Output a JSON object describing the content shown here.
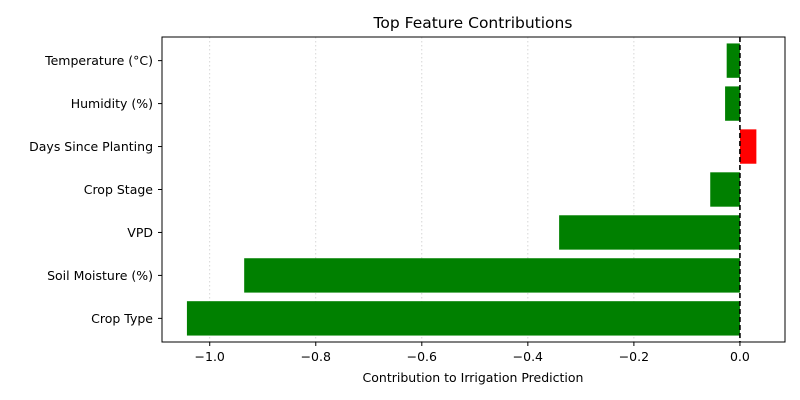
{
  "chart_data": {
    "type": "bar",
    "orientation": "horizontal",
    "title": "Top Feature Contributions",
    "xlabel": "Contribution to Irrigation Prediction",
    "ylabel": "",
    "categories": [
      "Crop Type",
      "Soil Moisture (%)",
      "VPD",
      "Crop Stage",
      "Days Since Planting",
      "Humidity (%)",
      "Temperature (°C)"
    ],
    "values": [
      -1.043,
      -0.935,
      -0.341,
      -0.056,
      0.031,
      -0.028,
      -0.025
    ],
    "xlim": [
      -1.09,
      0.085
    ],
    "xticks": [
      -1.0,
      -0.8,
      -0.6,
      -0.4,
      -0.2,
      0.0
    ],
    "xtick_labels": [
      "−1.0",
      "−0.8",
      "−0.6",
      "−0.4",
      "−0.2",
      "0.0"
    ],
    "grid": "x-dotted",
    "reference_line": 0,
    "colors": {
      "negative": "#008000",
      "positive": "#ff0000",
      "grid": "#cccccc",
      "reference": "#000000"
    }
  }
}
